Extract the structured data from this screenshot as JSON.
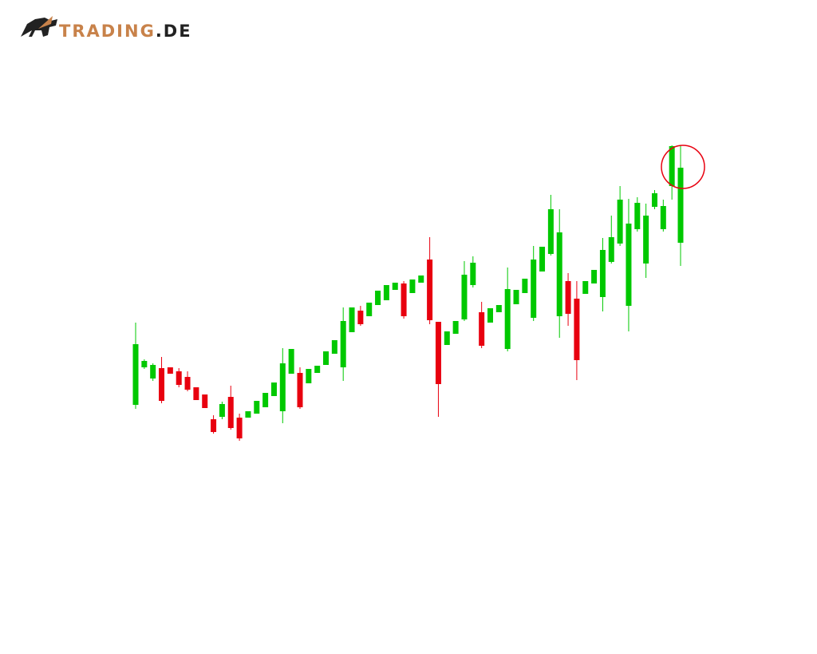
{
  "logo": {
    "brand": "TRADING",
    "suffix": ".DE"
  },
  "chart_data": {
    "type": "candlestick",
    "up_color": "#00c800",
    "down_color": "#e8000f",
    "ylim": [
      0,
      450
    ],
    "open": [
      93,
      140,
      126,
      139,
      140,
      135,
      128,
      115,
      106,
      75,
      78,
      103,
      77,
      77,
      82,
      90,
      104,
      85,
      132,
      133,
      120,
      133,
      143,
      157,
      140,
      184,
      211,
      204,
      218,
      224,
      237,
      245,
      233,
      246,
      275,
      197,
      168,
      182,
      200,
      243,
      209,
      196,
      209,
      163,
      219,
      233,
      202,
      260,
      282,
      204,
      248,
      226,
      232,
      245,
      228,
      272,
      295,
      217,
      313,
      270,
      341,
      313,
      367,
      296
    ],
    "high": [
      196,
      150,
      145,
      153,
      140,
      139,
      135,
      115,
      106,
      80,
      97,
      117,
      82,
      85,
      98,
      108,
      121,
      164,
      163,
      140,
      138,
      142,
      160,
      174,
      215,
      215,
      217,
      221,
      236,
      243,
      246,
      248,
      250,
      255,
      303,
      197,
      185,
      198,
      273,
      279,
      222,
      214,
      218,
      265,
      237,
      251,
      292,
      291,
      356,
      338,
      258,
      248,
      248,
      262,
      302,
      330,
      367,
      351,
      353,
      345,
      362,
      350,
      418,
      418
    ],
    "low": [
      88,
      138,
      123,
      95,
      132,
      115,
      110,
      99,
      89,
      57,
      75,
      62,
      48,
      77,
      82,
      90,
      104,
      70,
      132,
      88,
      120,
      133,
      143,
      157,
      123,
      184,
      192,
      204,
      218,
      224,
      237,
      201,
      233,
      246,
      194,
      78,
      168,
      182,
      198,
      240,
      164,
      196,
      209,
      160,
      219,
      233,
      198,
      260,
      280,
      177,
      192,
      124,
      232,
      245,
      210,
      270,
      292,
      185,
      310,
      252,
      338,
      310,
      350,
      267
    ],
    "close": [
      169,
      148,
      143,
      98,
      132,
      118,
      112,
      99,
      89,
      59,
      94,
      64,
      51,
      85,
      98,
      108,
      121,
      145,
      163,
      90,
      138,
      142,
      160,
      174,
      198,
      215,
      194,
      221,
      236,
      243,
      246,
      204,
      250,
      255,
      199,
      119,
      185,
      198,
      256,
      271,
      167,
      214,
      218,
      238,
      237,
      251,
      275,
      291,
      338,
      309,
      207,
      149,
      248,
      262,
      287,
      303,
      350,
      320,
      346,
      330,
      358,
      342,
      417,
      390
    ]
  }
}
